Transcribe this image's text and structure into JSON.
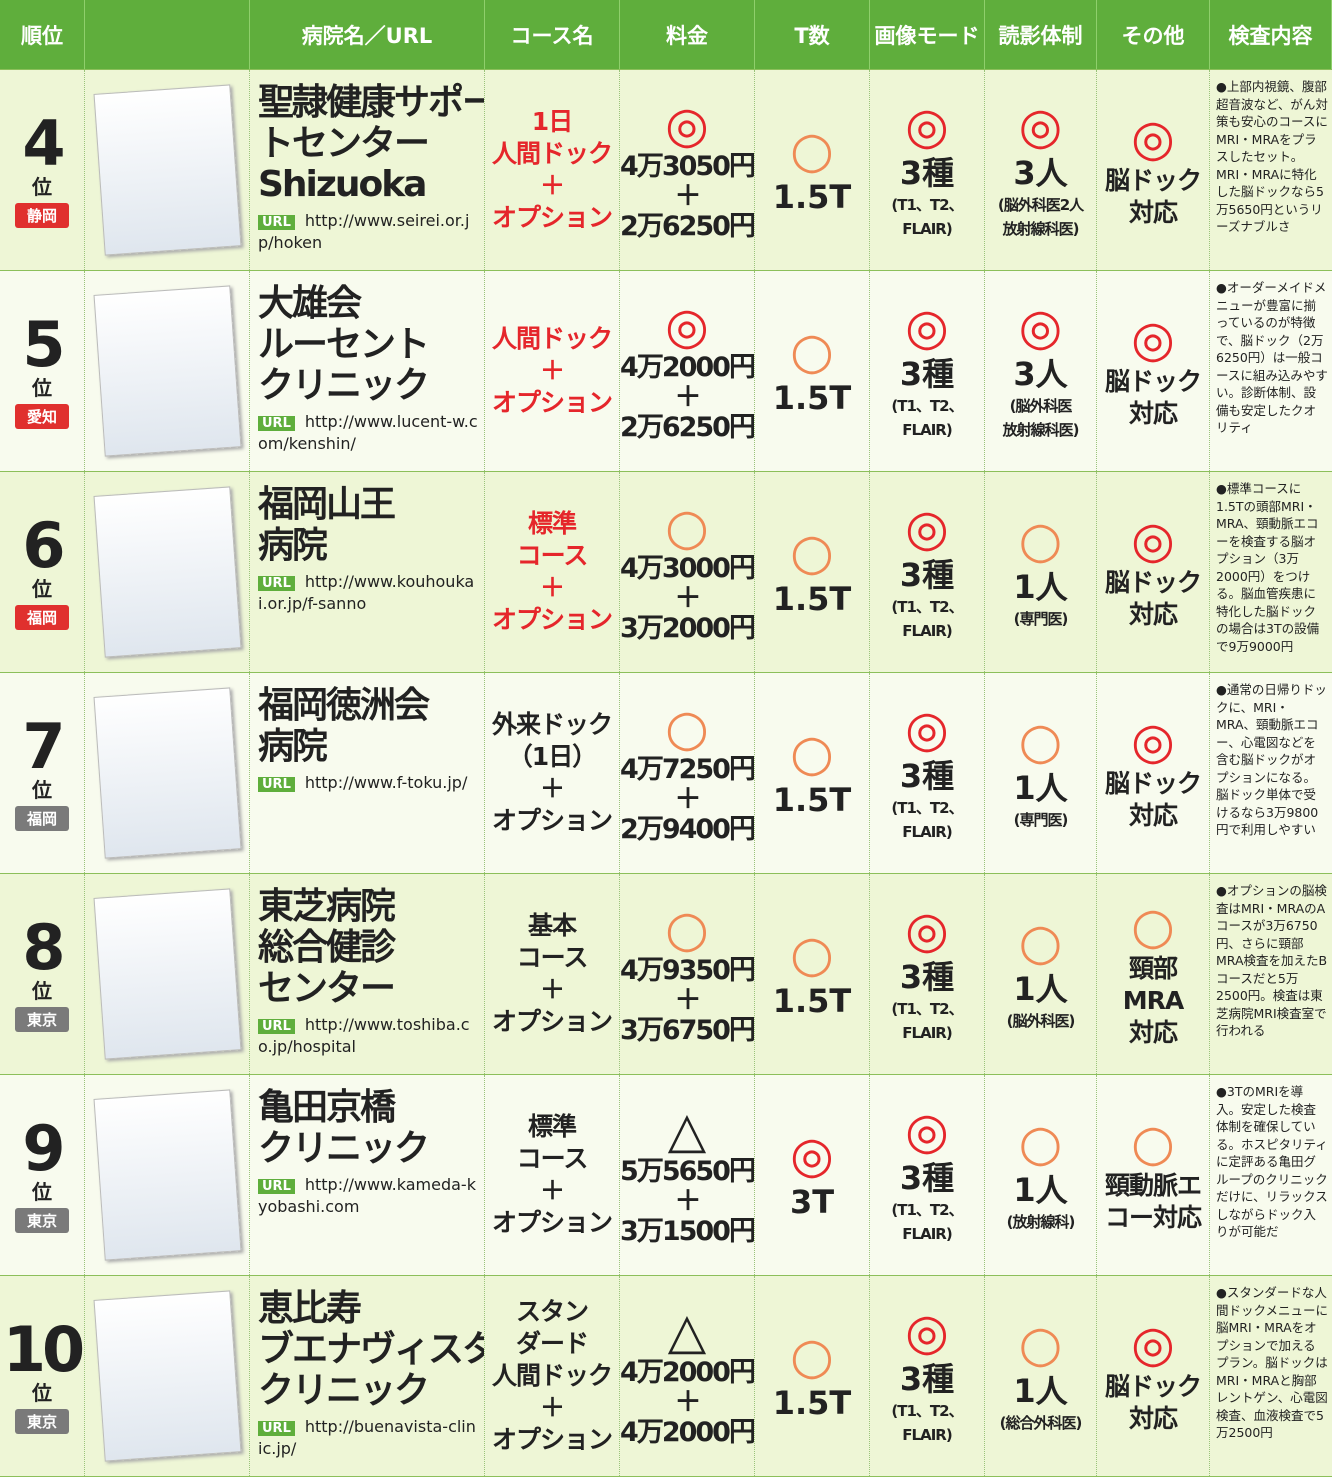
{
  "mark_colors": {
    "◎": "#e5262b",
    "○": "#ef8a55",
    "△": "#222222"
  },
  "header": {
    "columns": [
      "順位",
      "",
      "病院名／URL",
      "コース名",
      "料金",
      "T数",
      "画像モード",
      "読影体制",
      "その他",
      "検査内容"
    ]
  },
  "url_label": "URL",
  "rows": [
    {
      "rank": "4",
      "rank_unit": "位",
      "pref": "静岡",
      "badge_color": "#e0302e",
      "name": [
        "聖隷健康サポー",
        "トセンター",
        "Shizuoka"
      ],
      "url": "http://www.seirei.or.jp/hoken",
      "course": [
        "1日",
        "人間ドック",
        "＋",
        "オプション"
      ],
      "course_color": "#e5262b",
      "price_mark": "◎",
      "price": [
        "4万3050円",
        "＋",
        "2万6250円"
      ],
      "t_mark": "○",
      "t": "1.5T",
      "image_mark": "◎",
      "image": [
        "3種",
        "(T1、T2、",
        "FLAIR)"
      ],
      "reading_mark": "◎",
      "reading": [
        "3人",
        "(脳外科医2人",
        "放射線科医)"
      ],
      "other_mark": "◎",
      "other": [
        "脳ドック",
        "対応"
      ],
      "content": "●上部内視鏡、腹部超音波など、がん対策も安心のコースにMRI・MRAをプラスしたセット。MRI・MRAに特化した脳ドックなら5万5650円というリーズナブルさ"
    },
    {
      "rank": "5",
      "rank_unit": "位",
      "pref": "愛知",
      "badge_color": "#e0302e",
      "name": [
        "大雄会",
        "ルーセント",
        "クリニック"
      ],
      "url": "http://www.lucent-w.com/kenshin/",
      "course": [
        "人間ドック",
        "＋",
        "オプション"
      ],
      "course_color": "#e5262b",
      "price_mark": "◎",
      "price": [
        "4万2000円",
        "＋",
        "2万6250円"
      ],
      "t_mark": "○",
      "t": "1.5T",
      "image_mark": "◎",
      "image": [
        "3種",
        "(T1、T2、",
        "FLAIR)"
      ],
      "reading_mark": "◎",
      "reading": [
        "3人",
        "(脳外科医",
        "放射線科医)"
      ],
      "other_mark": "◎",
      "other": [
        "脳ドック",
        "対応"
      ],
      "content": "●オーダーメイドメニューが豊富に揃っているのが特徴で、脳ドック（2万6250円）は一般コースに組み込みやすい。診断体制、設備も安定したクオリティ"
    },
    {
      "rank": "6",
      "rank_unit": "位",
      "pref": "福岡",
      "badge_color": "#e0302e",
      "name": [
        "福岡山王",
        "病院"
      ],
      "url": "http://www.kouhoukai.or.jp/f-sanno",
      "course": [
        "標準",
        "コース",
        "＋",
        "オプション"
      ],
      "course_color": "#e5262b",
      "price_mark": "○",
      "price": [
        "4万3000円",
        "＋",
        "3万2000円"
      ],
      "t_mark": "○",
      "t": "1.5T",
      "image_mark": "◎",
      "image": [
        "3種",
        "(T1、T2、",
        "FLAIR)"
      ],
      "reading_mark": "○",
      "reading": [
        "1人",
        "(専門医)"
      ],
      "other_mark": "◎",
      "other": [
        "脳ドック",
        "対応"
      ],
      "content": "●標準コースに1.5Tの頭部MRI・MRA、頸動脈エコーを検査する脳オプション（3万2000円）をつける。脳血管疾患に特化した脳ドックの場合は3Tの設備で9万9000円"
    },
    {
      "rank": "7",
      "rank_unit": "位",
      "pref": "福岡",
      "badge_color": "#7a7a7a",
      "name": [
        "福岡徳洲会",
        "病院"
      ],
      "url": "http://www.f-toku.jp/",
      "course": [
        "外来ドック",
        "（1日）",
        "＋",
        "オプション"
      ],
      "course_color": "#222222",
      "price_mark": "○",
      "price": [
        "4万7250円",
        "＋",
        "2万9400円"
      ],
      "t_mark": "○",
      "t": "1.5T",
      "image_mark": "◎",
      "image": [
        "3種",
        "(T1、T2、",
        "FLAIR)"
      ],
      "reading_mark": "○",
      "reading": [
        "1人",
        "(専門医)"
      ],
      "other_mark": "◎",
      "other": [
        "脳ドック",
        "対応"
      ],
      "content": "●通常の日帰りドックに、MRI・MRA、頸動脈エコー、心電図などを含む脳ドックがオプションになる。脳ドック単体で受けるなら3万9800円で利用しやすい"
    },
    {
      "rank": "8",
      "rank_unit": "位",
      "pref": "東京",
      "badge_color": "#7a7a7a",
      "name": [
        "東芝病院",
        "総合健診",
        "センター"
      ],
      "url": "http://www.toshiba.co.jp/hospital",
      "course": [
        "基本",
        "コース",
        "＋",
        "オプション"
      ],
      "course_color": "#222222",
      "price_mark": "○",
      "price": [
        "4万9350円",
        "＋",
        "3万6750円"
      ],
      "t_mark": "○",
      "t": "1.5T",
      "image_mark": "◎",
      "image": [
        "3種",
        "(T1、T2、",
        "FLAIR)"
      ],
      "reading_mark": "○",
      "reading": [
        "1人",
        "(脳外科医)"
      ],
      "other_mark": "○",
      "other": [
        "頸部",
        "MRA",
        "対応"
      ],
      "content": "●オプションの脳検査はMRI・MRAのAコースが3万6750円、さらに頸部MRA検査を加えたBコースだと5万2500円。検査は東芝病院MRI検査室で行われる"
    },
    {
      "rank": "9",
      "rank_unit": "位",
      "pref": "東京",
      "badge_color": "#7a7a7a",
      "name": [
        "亀田京橋",
        "クリニック"
      ],
      "url": "http://www.kameda-kyobashi.com",
      "course": [
        "標準",
        "コース",
        "＋",
        "オプション"
      ],
      "course_color": "#222222",
      "price_mark": "△",
      "price": [
        "5万5650円",
        "＋",
        "3万1500円"
      ],
      "t_mark": "◎",
      "t": "3T",
      "image_mark": "◎",
      "image": [
        "3種",
        "(T1、T2、",
        "FLAIR)"
      ],
      "reading_mark": "○",
      "reading": [
        "1人",
        "(放射線科)"
      ],
      "other_mark": "○",
      "other": [
        "頸動脈エ",
        "コー対応"
      ],
      "content": "●3TのMRIを導入。安定した検査体制を確保している。ホスピタリティに定評ある亀田グループのクリニックだけに、リラックスしながらドック入りが可能だ"
    },
    {
      "rank": "10",
      "rank_unit": "位",
      "pref": "東京",
      "badge_color": "#7a7a7a",
      "name": [
        "恵比寿",
        "ブエナヴィスタ",
        "クリニック"
      ],
      "url": "http://buenavista-clinic.jp/",
      "course": [
        "スタン",
        "ダード",
        "人間ドック",
        "＋",
        "オプション"
      ],
      "course_color": "#222222",
      "price_mark": "△",
      "price": [
        "4万2000円",
        "＋",
        "4万2000円"
      ],
      "t_mark": "○",
      "t": "1.5T",
      "image_mark": "◎",
      "image": [
        "3種",
        "(T1、T2、",
        "FLAIR)"
      ],
      "reading_mark": "○",
      "reading": [
        "1人",
        "(総合外科医)"
      ],
      "other_mark": "◎",
      "other": [
        "脳ドック",
        "対応"
      ],
      "content": "●スタンダードな人間ドックメニューに脳MRI・MRAをオプションで加えるプラン。脳ドックはMRI・MRAと胸部レントゲン、心電図検査、血液検査で5万2500円"
    }
  ]
}
